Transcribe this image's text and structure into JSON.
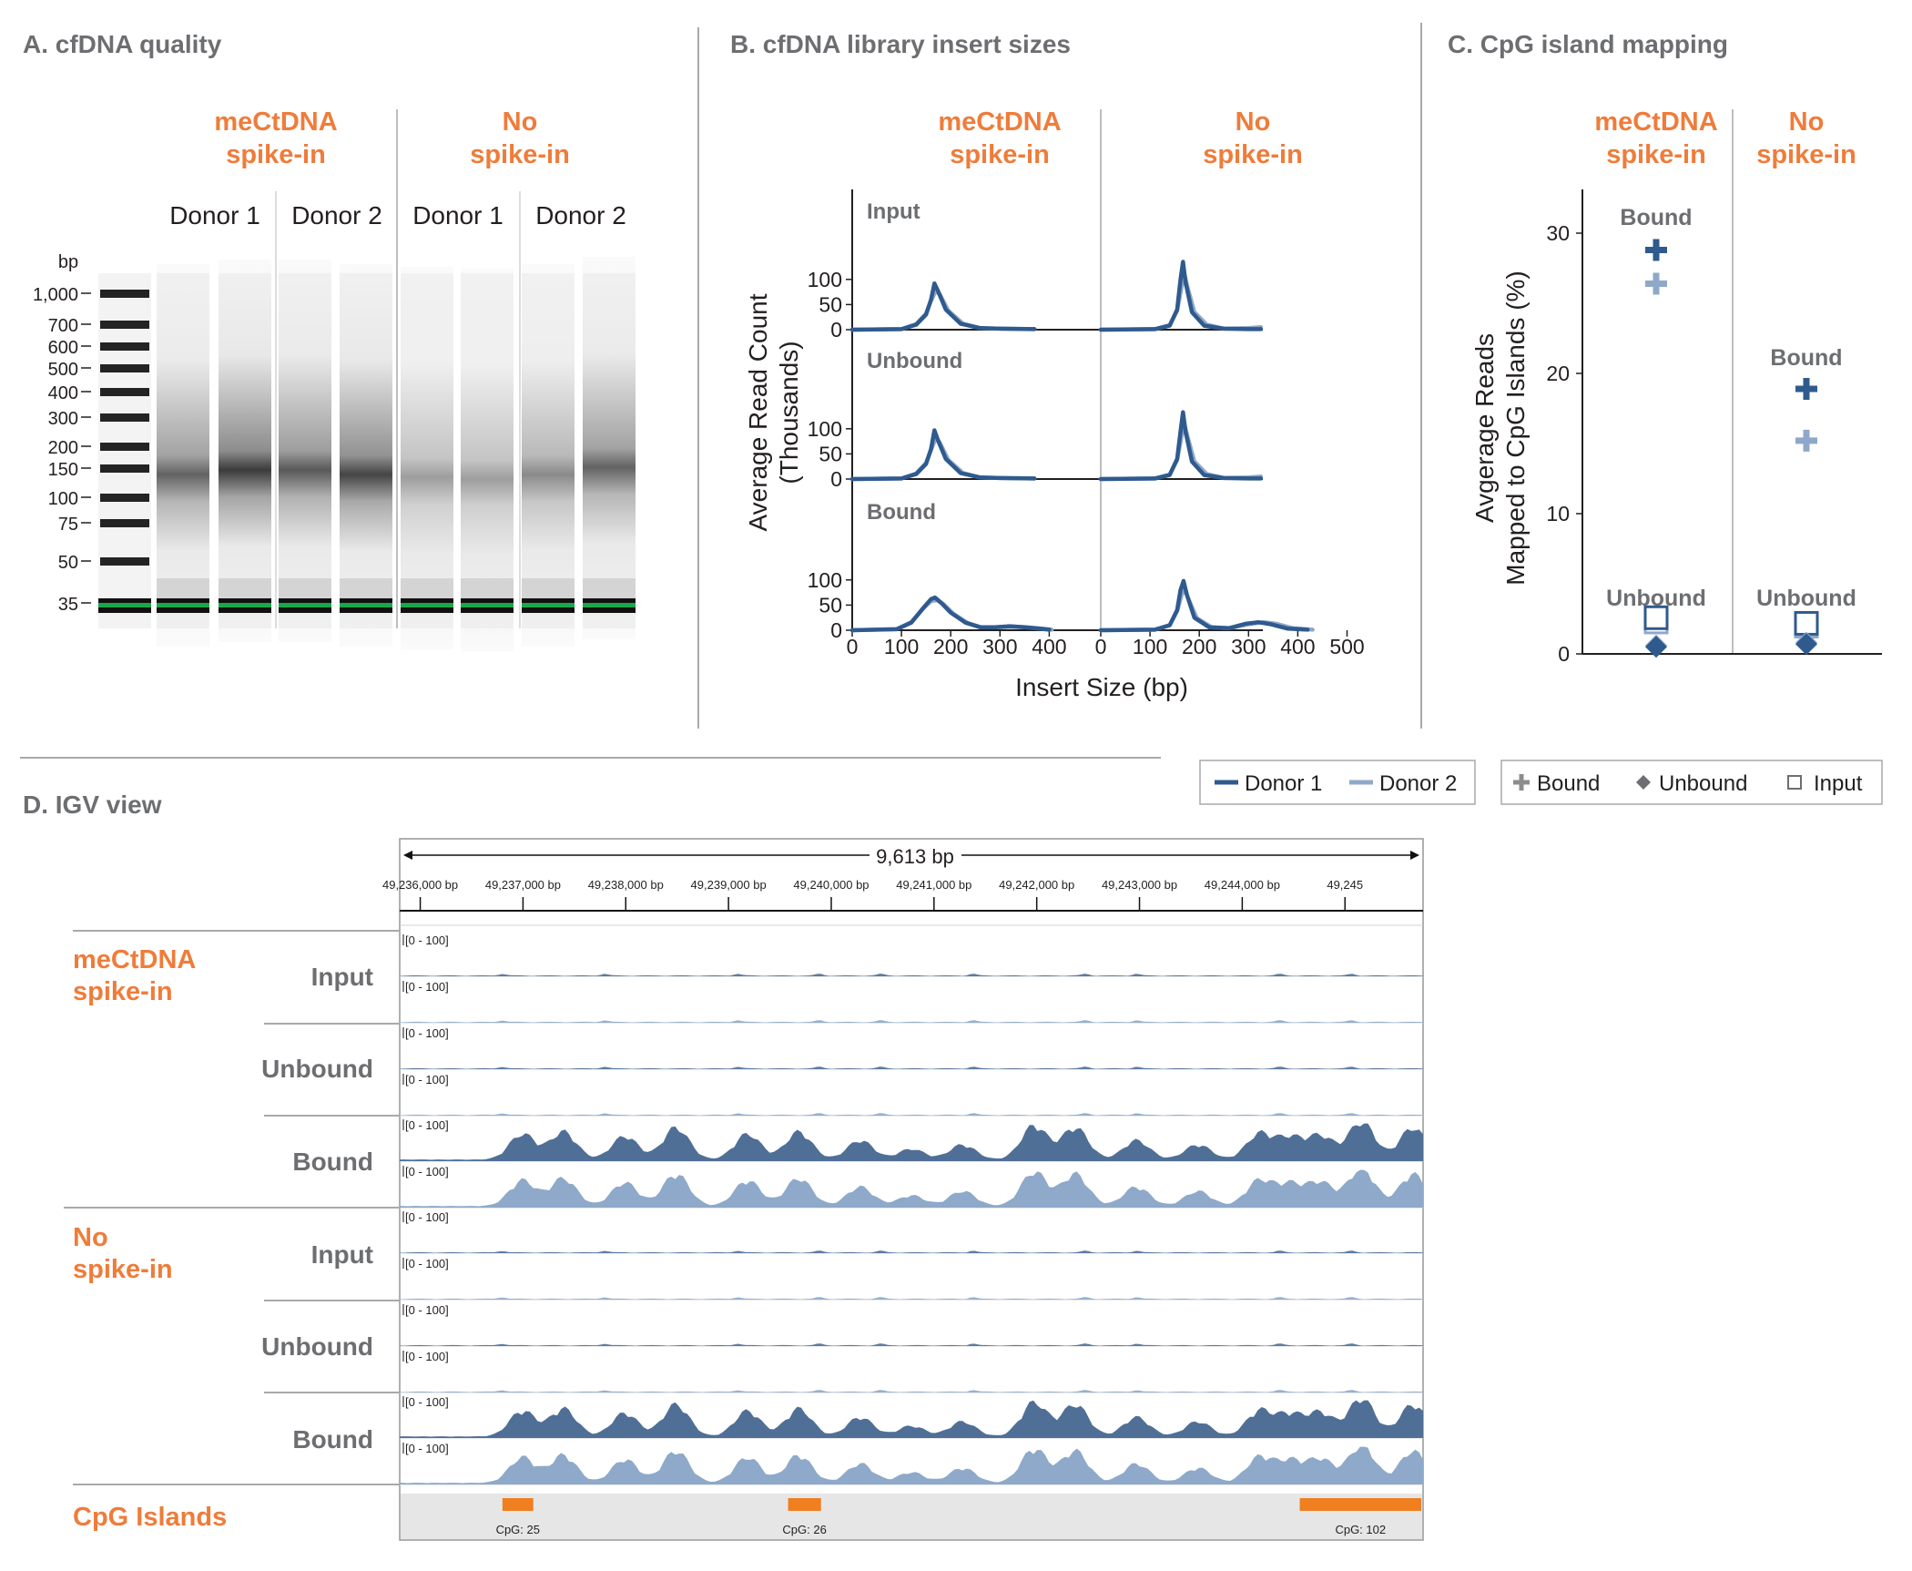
{
  "colors": {
    "donor1": "#2f5a8e",
    "donor2": "#8fa8c9",
    "accent": "#ef7c3a",
    "panel_title": "#6d6e71",
    "cpg_bar": "#f07f1f",
    "gel_green": "#18a84a"
  },
  "panelA": {
    "title": "A. cfDNA quality",
    "groups": [
      {
        "line1": "meCtDNA",
        "line2": "spike-in"
      },
      {
        "line1": "No",
        "line2": "spike-in"
      }
    ],
    "donors": [
      "Donor 1",
      "Donor 2",
      "Donor 1",
      "Donor 2"
    ],
    "ladder_unit": "bp",
    "ladder": [
      "1,000",
      "700",
      "600",
      "500",
      "400",
      "300",
      "200",
      "150",
      "100",
      "75",
      "50",
      "35"
    ]
  },
  "panelB": {
    "title": "B. cfDNA library insert sizes",
    "groups": [
      {
        "line1": "meCtDNA",
        "line2": "spike-in"
      },
      {
        "line1": "No",
        "line2": "spike-in"
      }
    ],
    "rows": [
      "Input",
      "Unbound",
      "Bound"
    ],
    "ylabel_line1": "Average Read Count",
    "ylabel_line2": "(Thousands)",
    "xlabel": "Insert Size (bp)",
    "yticks": [
      "100",
      "50",
      "0"
    ],
    "xticks_left": [
      "0",
      "100",
      "200",
      "300",
      "400"
    ],
    "xticks_right": [
      "0",
      "100",
      "200",
      "300",
      "400",
      "500"
    ]
  },
  "panelC": {
    "title": "C. CpG island mapping",
    "groups": [
      {
        "line1": "meCtDNA",
        "line2": "spike-in"
      },
      {
        "line1": "No",
        "line2": "spike-in"
      }
    ],
    "ylabel_line1": "Avgerage Reads",
    "ylabel_line2": "Mapped to CpG Islands (%)",
    "yticks": [
      "30",
      "20",
      "10",
      "0"
    ],
    "bound_label": "Bound",
    "unbound_label": "Unbound"
  },
  "legend_donor": {
    "donor1": "Donor 1",
    "donor2": "Donor 2"
  },
  "legend_fraction": {
    "bound": "Bound",
    "unbound": "Unbound",
    "input": "Input"
  },
  "panelD": {
    "title": "D. IGV view",
    "span_label": "9,613 bp",
    "coords": [
      "49,236,000 bp",
      "49,237,000 bp",
      "49,238,000 bp",
      "49,239,000 bp",
      "49,240,000 bp",
      "49,241,000 bp",
      "49,242,000 bp",
      "49,243,000 bp",
      "49,244,000 bp",
      "49,245"
    ],
    "track_range": "[0 - 100]",
    "group1_line1": "meCtDNA",
    "group1_line2": "spike-in",
    "group2_line1": "No",
    "group2_line2": "spike-in",
    "row_labels": [
      "Input",
      "Unbound",
      "Bound"
    ],
    "cpg_label": "CpG Islands",
    "cpg_islands": [
      {
        "name": "CpG: 25",
        "start": 49236800,
        "end": 49237100
      },
      {
        "name": "CpG: 26",
        "start": 49239580,
        "end": 49239900
      },
      {
        "name": "CpG: 102",
        "start": 49244560,
        "end": 49245760
      }
    ]
  },
  "chart_data": [
    {
      "type": "line",
      "title": "B. cfDNA library insert sizes",
      "xlabel": "Insert Size (bp)",
      "ylabel": "Average Read Count (Thousands)",
      "xlim_left_column": [
        0,
        420
      ],
      "xlim_right_column": [
        0,
        500
      ],
      "ylim": [
        0,
        100
      ],
      "panels": [
        {
          "group": "meCtDNA spike-in",
          "fraction": "Input",
          "series": [
            {
              "name": "Donor 1",
              "x": [
                0,
                100,
                130,
                150,
                160,
                167,
                175,
                190,
                220,
                260,
                300,
                370
              ],
              "y": [
                0,
                1,
                10,
                30,
                60,
                92,
                75,
                40,
                12,
                3,
                2,
                1
              ]
            },
            {
              "name": "Donor 2",
              "x": [
                0,
                100,
                130,
                150,
                160,
                170,
                178,
                195,
                225,
                260,
                300,
                370
              ],
              "y": [
                0,
                1,
                11,
                32,
                58,
                78,
                70,
                38,
                12,
                3,
                2,
                1
              ]
            }
          ]
        },
        {
          "group": "No spike-in",
          "fraction": "Input",
          "series": [
            {
              "name": "Donor 1",
              "x": [
                0,
                110,
                140,
                155,
                162,
                167,
                172,
                185,
                210,
                250,
                300,
                325
              ],
              "y": [
                0,
                1,
                8,
                40,
                100,
                135,
                95,
                35,
                8,
                2,
                1,
                1
              ]
            },
            {
              "name": "Donor 2",
              "x": [
                0,
                110,
                140,
                155,
                164,
                170,
                176,
                190,
                215,
                250,
                300,
                325
              ],
              "y": [
                0,
                1,
                9,
                38,
                85,
                110,
                85,
                35,
                10,
                2,
                3,
                5
              ]
            }
          ]
        },
        {
          "group": "meCtDNA spike-in",
          "fraction": "Unbound",
          "series": [
            {
              "name": "Donor 1",
              "x": [
                0,
                100,
                130,
                150,
                160,
                167,
                175,
                190,
                220,
                260,
                300,
                370
              ],
              "y": [
                0,
                1,
                10,
                30,
                60,
                97,
                75,
                40,
                12,
                3,
                2,
                1
              ]
            },
            {
              "name": "Donor 2",
              "x": [
                0,
                100,
                130,
                150,
                160,
                170,
                178,
                195,
                225,
                260,
                300,
                370
              ],
              "y": [
                0,
                1,
                11,
                32,
                58,
                82,
                72,
                38,
                12,
                3,
                2,
                1
              ]
            }
          ]
        },
        {
          "group": "No spike-in",
          "fraction": "Unbound",
          "series": [
            {
              "name": "Donor 1",
              "x": [
                0,
                110,
                140,
                155,
                162,
                167,
                172,
                185,
                210,
                250,
                300,
                325
              ],
              "y": [
                0,
                1,
                8,
                40,
                95,
                133,
                95,
                35,
                8,
                2,
                1,
                1
              ]
            },
            {
              "name": "Donor 2",
              "x": [
                0,
                110,
                140,
                155,
                164,
                170,
                176,
                190,
                215,
                250,
                300,
                325
              ],
              "y": [
                0,
                1,
                9,
                38,
                85,
                108,
                85,
                35,
                10,
                2,
                3,
                5
              ]
            }
          ]
        },
        {
          "group": "meCtDNA spike-in",
          "fraction": "Bound",
          "series": [
            {
              "name": "Donor 1",
              "x": [
                0,
                90,
                120,
                145,
                160,
                168,
                180,
                200,
                230,
                260,
                290,
                320,
                350,
                380,
                400
              ],
              "y": [
                0,
                2,
                15,
                45,
                62,
                65,
                55,
                35,
                15,
                6,
                6,
                8,
                6,
                3,
                1
              ]
            },
            {
              "name": "Donor 2",
              "x": [
                0,
                90,
                120,
                145,
                160,
                172,
                185,
                205,
                235,
                260,
                290,
                325,
                355,
                385,
                405
              ],
              "y": [
                0,
                2,
                16,
                44,
                58,
                60,
                52,
                33,
                14,
                6,
                6,
                7,
                6,
                3,
                1
              ]
            }
          ]
        },
        {
          "group": "No spike-in",
          "fraction": "Bound",
          "series": [
            {
              "name": "Donor 1",
              "x": [
                0,
                110,
                140,
                155,
                162,
                168,
                175,
                190,
                220,
                260,
                295,
                320,
                345,
                380,
                420
              ],
              "y": [
                0,
                1,
                10,
                40,
                80,
                98,
                70,
                25,
                6,
                4,
                13,
                16,
                12,
                3,
                1
              ]
            },
            {
              "name": "Donor 2",
              "x": [
                0,
                110,
                140,
                155,
                164,
                170,
                178,
                195,
                225,
                260,
                300,
                330,
                355,
                390,
                430
              ],
              "y": [
                0,
                1,
                10,
                38,
                70,
                82,
                62,
                24,
                6,
                4,
                12,
                16,
                13,
                4,
                1
              ]
            }
          ]
        }
      ]
    },
    {
      "type": "scatter",
      "title": "C. CpG island mapping",
      "ylabel": "Avgerage Reads Mapped to CpG Islands (%)",
      "categories": [
        "meCtDNA spike-in",
        "No spike-in"
      ],
      "ylim": [
        0,
        33
      ],
      "series": [
        {
          "name": "Bound (Donor 1)",
          "values": [
            28.8,
            18.9
          ]
        },
        {
          "name": "Bound (Donor 2)",
          "values": [
            26.4,
            15.2
          ]
        },
        {
          "name": "Unbound (Donor 1)",
          "values": [
            0.5,
            0.7
          ]
        },
        {
          "name": "Unbound (Donor 2)",
          "values": [
            0.6,
            0.8
          ]
        },
        {
          "name": "Input (Donor 1)",
          "values": [
            1.8,
            1.4
          ]
        },
        {
          "name": "Input (Donor 2)",
          "values": [
            1.5,
            1.2
          ]
        }
      ]
    }
  ]
}
